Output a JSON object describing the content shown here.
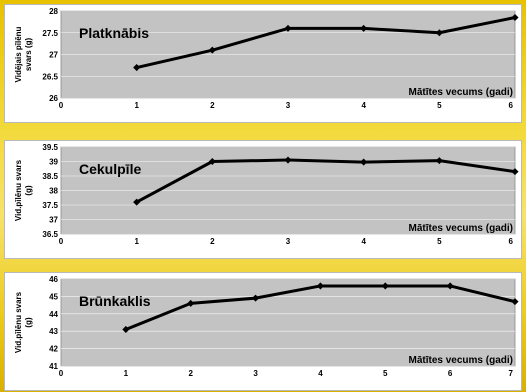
{
  "chart_data": [
    {
      "type": "line",
      "title": "Platknābis",
      "xlabel": "Mātītes vecums (gadi)",
      "ylabel": "Vidējais pīlēnu svars (g)",
      "x": [
        1,
        2,
        3,
        4,
        5,
        6
      ],
      "values": [
        26.7,
        27.1,
        27.6,
        27.6,
        27.5,
        27.85
      ],
      "xlim": [
        0,
        6
      ],
      "ylim": [
        26,
        28
      ],
      "yticks": [
        "26",
        "26.5",
        "27",
        "27.5",
        "28"
      ],
      "xticks": [
        "0",
        "1",
        "2",
        "3",
        "4",
        "5",
        "6"
      ],
      "grid": true
    },
    {
      "type": "line",
      "title": "Cekulpīle",
      "xlabel": "Mātītes vecums (gadi)",
      "ylabel": "Vid.pīlēnu svars (g)",
      "x": [
        1,
        2,
        3,
        4,
        5,
        6
      ],
      "values": [
        37.6,
        39.0,
        39.05,
        38.98,
        39.03,
        38.65
      ],
      "xlim": [
        0,
        6
      ],
      "ylim": [
        36.5,
        39.5
      ],
      "yticks": [
        "36.5",
        "37",
        "37.5",
        "38",
        "38.5",
        "39",
        "39.5"
      ],
      "xticks": [
        "0",
        "1",
        "2",
        "3",
        "4",
        "5",
        "6"
      ],
      "grid": true
    },
    {
      "type": "line",
      "title": "Brūnkaklis",
      "xlabel": "Mātītes vecums (gadi)",
      "ylabel": "Vid.pīlēnu svars (g)",
      "x": [
        1,
        2,
        3,
        4,
        5,
        6,
        7
      ],
      "values": [
        43.1,
        44.6,
        44.9,
        45.6,
        45.6,
        45.6,
        44.7
      ],
      "xlim": [
        0,
        7
      ],
      "ylim": [
        41,
        46
      ],
      "yticks": [
        "41",
        "42",
        "43",
        "44",
        "45",
        "46"
      ],
      "xticks": [
        "0",
        "1",
        "2",
        "3",
        "4",
        "5",
        "6",
        "7"
      ],
      "grid": true
    }
  ]
}
